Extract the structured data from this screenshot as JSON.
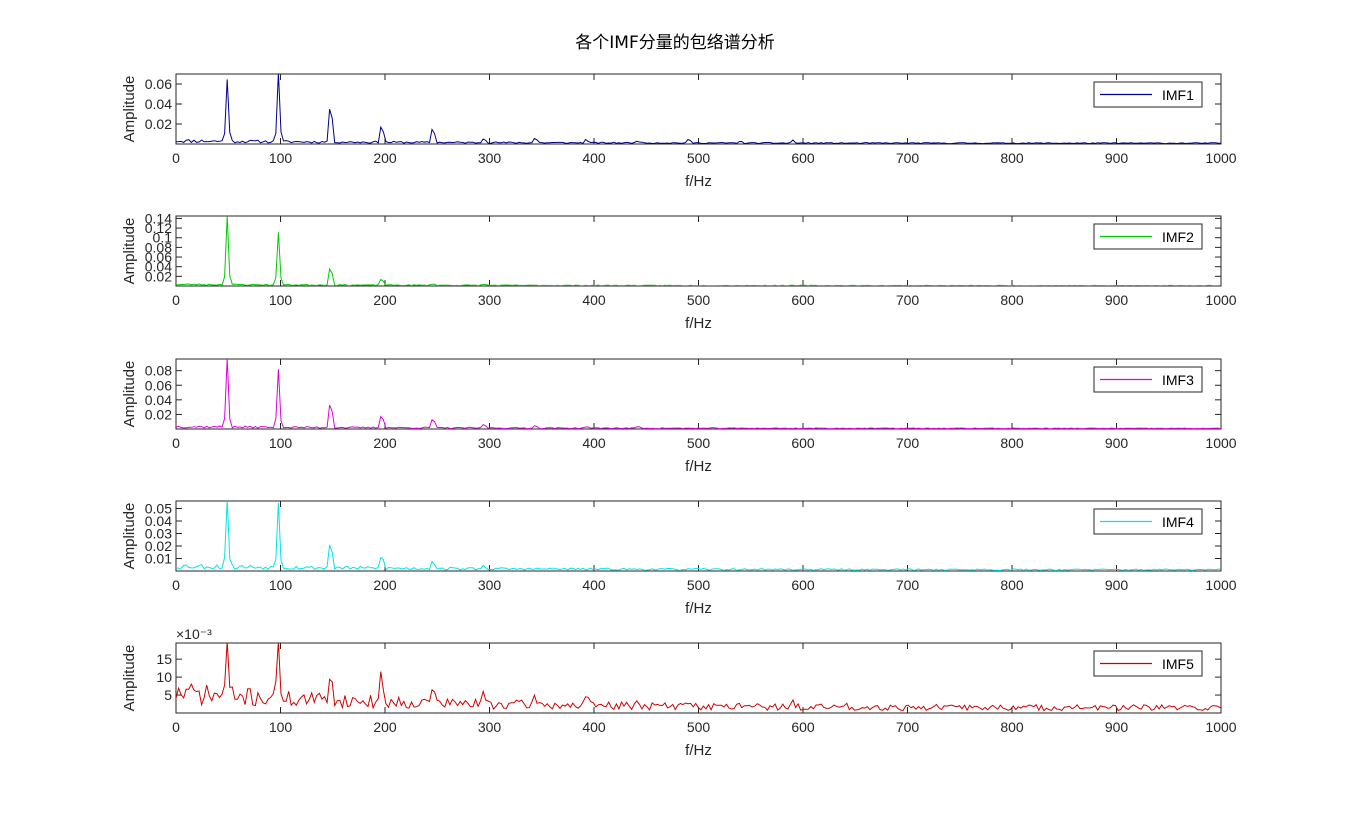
{
  "figure": {
    "title": "各个IMF分量的包络谱分析"
  },
  "chart_data": [
    {
      "type": "line",
      "title": "",
      "xlabel": "f/Hz",
      "ylabel": "Amplitude",
      "xlim": [
        0,
        1000
      ],
      "ylim": [
        0,
        0.07
      ],
      "xticks": [
        0,
        100,
        200,
        300,
        400,
        500,
        600,
        700,
        800,
        900,
        1000
      ],
      "yticks": [
        0.02,
        0.04,
        0.06
      ],
      "ytick_labels": [
        "0.02",
        "0.04",
        "0.06"
      ],
      "exponent_label": "",
      "legend": {
        "position": "top-right"
      },
      "series": [
        {
          "name": "IMF1",
          "color": "#00008B",
          "peaks": [
            [
              49,
              0.063
            ],
            [
              98,
              0.07
            ],
            [
              148,
              0.047
            ],
            [
              197,
              0.022
            ],
            [
              246,
              0.018
            ],
            [
              295,
              0.006
            ],
            [
              344,
              0.006
            ],
            [
              393,
              0.004
            ],
            [
              442,
              0.003
            ],
            [
              491,
              0.004
            ],
            [
              540,
              0.002
            ],
            [
              590,
              0.003
            ]
          ],
          "noise": 0.004,
          "seed": 11
        }
      ]
    },
    {
      "type": "line",
      "title": "",
      "xlabel": "f/Hz",
      "ylabel": "Amplitude",
      "xlim": [
        0,
        1000
      ],
      "ylim": [
        0,
        0.145
      ],
      "xticks": [
        0,
        100,
        200,
        300,
        400,
        500,
        600,
        700,
        800,
        900,
        1000
      ],
      "yticks": [
        0.02,
        0.04,
        0.06,
        0.08,
        0.1,
        0.12,
        0.14
      ],
      "ytick_labels": [
        "0.02",
        "0.04",
        "0.06",
        "0.08",
        "0.1",
        "0.12",
        "0.14"
      ],
      "exponent_label": "",
      "legend": {
        "position": "top-right"
      },
      "series": [
        {
          "name": "IMF2",
          "color": "#00CC00",
          "peaks": [
            [
              49,
              0.142
            ],
            [
              98,
              0.11
            ],
            [
              148,
              0.048
            ],
            [
              197,
              0.017
            ],
            [
              246,
              0.004
            ],
            [
              295,
              0.003
            ]
          ],
          "noise": 0.004,
          "seed": 23
        }
      ]
    },
    {
      "type": "line",
      "title": "",
      "xlabel": "f/Hz",
      "ylabel": "Amplitude",
      "xlim": [
        0,
        1000
      ],
      "ylim": [
        0,
        0.096
      ],
      "xticks": [
        0,
        100,
        200,
        300,
        400,
        500,
        600,
        700,
        800,
        900,
        1000
      ],
      "yticks": [
        0.02,
        0.04,
        0.06,
        0.08
      ],
      "ytick_labels": [
        "0.02",
        "0.04",
        "0.06",
        "0.08"
      ],
      "exponent_label": "",
      "legend": {
        "position": "top-right"
      },
      "series": [
        {
          "name": "IMF3",
          "color": "#E000E0",
          "peaks": [
            [
              49,
              0.095
            ],
            [
              98,
              0.08
            ],
            [
              148,
              0.045
            ],
            [
              197,
              0.023
            ],
            [
              246,
              0.016
            ],
            [
              295,
              0.006
            ],
            [
              344,
              0.004
            ],
            [
              393,
              0.003
            ],
            [
              442,
              0.003
            ]
          ],
          "noise": 0.004,
          "seed": 37
        }
      ]
    },
    {
      "type": "line",
      "title": "",
      "xlabel": "f/Hz",
      "ylabel": "Amplitude",
      "xlim": [
        0,
        1000
      ],
      "ylim": [
        0,
        0.056
      ],
      "xticks": [
        0,
        100,
        200,
        300,
        400,
        500,
        600,
        700,
        800,
        900,
        1000
      ],
      "yticks": [
        0.01,
        0.02,
        0.03,
        0.04,
        0.05
      ],
      "ytick_labels": [
        "0.01",
        "0.02",
        "0.03",
        "0.04",
        "0.05"
      ],
      "exponent_label": "",
      "legend": {
        "position": "top-right"
      },
      "series": [
        {
          "name": "IMF4",
          "color": "#00E5E5",
          "peaks": [
            [
              49,
              0.055
            ],
            [
              98,
              0.053
            ],
            [
              148,
              0.026
            ],
            [
              197,
              0.013
            ],
            [
              246,
              0.008
            ],
            [
              295,
              0.003
            ]
          ],
          "noise": 0.005,
          "seed": 53
        }
      ]
    },
    {
      "type": "line",
      "title": "",
      "xlabel": "f/Hz",
      "ylabel": "Amplitude",
      "xlim": [
        0,
        1000
      ],
      "ylim": [
        0,
        0.0195
      ],
      "xticks": [
        0,
        100,
        200,
        300,
        400,
        500,
        600,
        700,
        800,
        900,
        1000
      ],
      "yticks": [
        0.005,
        0.01,
        0.015
      ],
      "ytick_labels": [
        "5",
        "10",
        "15"
      ],
      "exponent_label": "×10⁻³",
      "legend": {
        "position": "top-right"
      },
      "series": [
        {
          "name": "IMF5",
          "color": "#D00000",
          "peaks": [
            [
              49,
              0.019
            ],
            [
              98,
              0.019
            ],
            [
              148,
              0.0105
            ],
            [
              197,
              0.0095
            ],
            [
              246,
              0.0065
            ],
            [
              295,
              0.0035
            ],
            [
              344,
              0.003
            ],
            [
              393,
              0.0025
            ],
            [
              442,
              0.002
            ],
            [
              491,
              0.0025
            ],
            [
              540,
              0.0015
            ],
            [
              590,
              0.0012
            ],
            [
              640,
              0.001
            ]
          ],
          "noise": 0.007,
          "seed": 71
        }
      ]
    }
  ]
}
